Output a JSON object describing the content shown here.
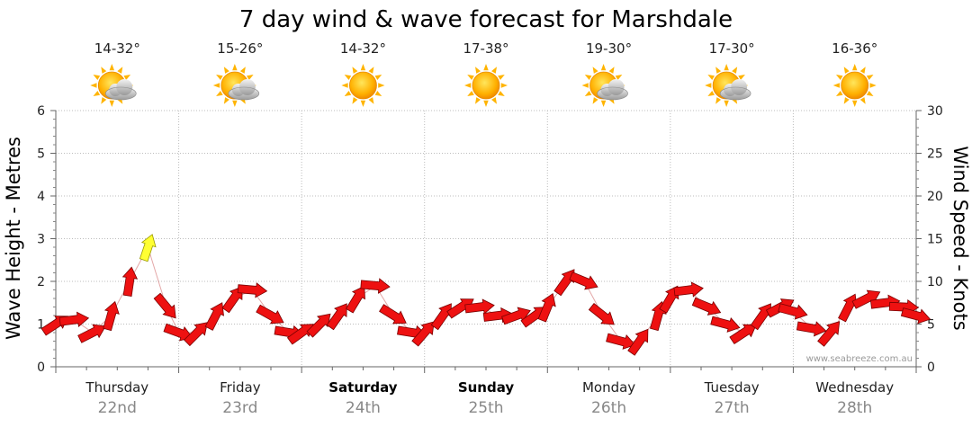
{
  "chart_data": {
    "type": "line",
    "title": "7 day wind & wave forecast for Marshdale",
    "ylabel_left": "Wave Height - Metres",
    "ylabel_right": "Wind Speed - Knots",
    "ylim_left": [
      0,
      6
    ],
    "ylim_right": [
      0,
      30
    ],
    "yticks_left": [
      "0",
      "1",
      "2",
      "3",
      "4",
      "5",
      "6"
    ],
    "yticks_right": [
      "0",
      "5",
      "10",
      "15",
      "20",
      "25",
      "30"
    ],
    "grid": true,
    "days": [
      {
        "day": "Thursday",
        "date": "22nd",
        "bold": false,
        "temp": "14-32°",
        "weather": "partly-cloudy"
      },
      {
        "day": "Friday",
        "date": "23rd",
        "bold": false,
        "temp": "15-26°",
        "weather": "partly-cloudy"
      },
      {
        "day": "Saturday",
        "date": "24th",
        "bold": true,
        "temp": "14-32°",
        "weather": "sunny"
      },
      {
        "day": "Sunday",
        "date": "25th",
        "bold": true,
        "temp": "17-38°",
        "weather": "sunny"
      },
      {
        "day": "Monday",
        "date": "26th",
        "bold": false,
        "temp": "19-30°",
        "weather": "partly-cloudy"
      },
      {
        "day": "Tuesday",
        "date": "27th",
        "bold": false,
        "temp": "17-30°",
        "weather": "partly-cloudy"
      },
      {
        "day": "Wednesday",
        "date": "28th",
        "bold": false,
        "temp": "16-36°",
        "weather": "sunny"
      }
    ],
    "series": [
      {
        "name": "Wind Speed - Knots",
        "axis": "right",
        "color": "#ee1111",
        "highlight_color": "#ffff33",
        "x_days": [
          0.0,
          0.15,
          0.3,
          0.45,
          0.6,
          0.75,
          0.9,
          1.0,
          1.15,
          1.3,
          1.45,
          1.6,
          1.75,
          1.9,
          2.0,
          2.15,
          2.3,
          2.45,
          2.6,
          2.75,
          2.9,
          3.0,
          3.15,
          3.3,
          3.45,
          3.6,
          3.75,
          3.9,
          4.0,
          4.15,
          4.3,
          4.45,
          4.6,
          4.75,
          4.9,
          5.0,
          5.15,
          5.3,
          5.45,
          5.6,
          5.75,
          5.9,
          6.0,
          6.15,
          6.3,
          6.45,
          6.6,
          6.75,
          6.9,
          7.0
        ],
        "knots": [
          5,
          5.5,
          4,
          6,
          10,
          14,
          7,
          4,
          4,
          6,
          8,
          9,
          6,
          4,
          4,
          5,
          6,
          8,
          9.5,
          6,
          4,
          4,
          6,
          7,
          7,
          6,
          6,
          6,
          7,
          10,
          10,
          6,
          3,
          3,
          6,
          8,
          9,
          7,
          5,
          4,
          6,
          7,
          6.5,
          4.5,
          4,
          7,
          8,
          7.5,
          7,
          6
        ],
        "highlight_index": 5
      }
    ],
    "credit": "www.seabreeze.com.au"
  }
}
